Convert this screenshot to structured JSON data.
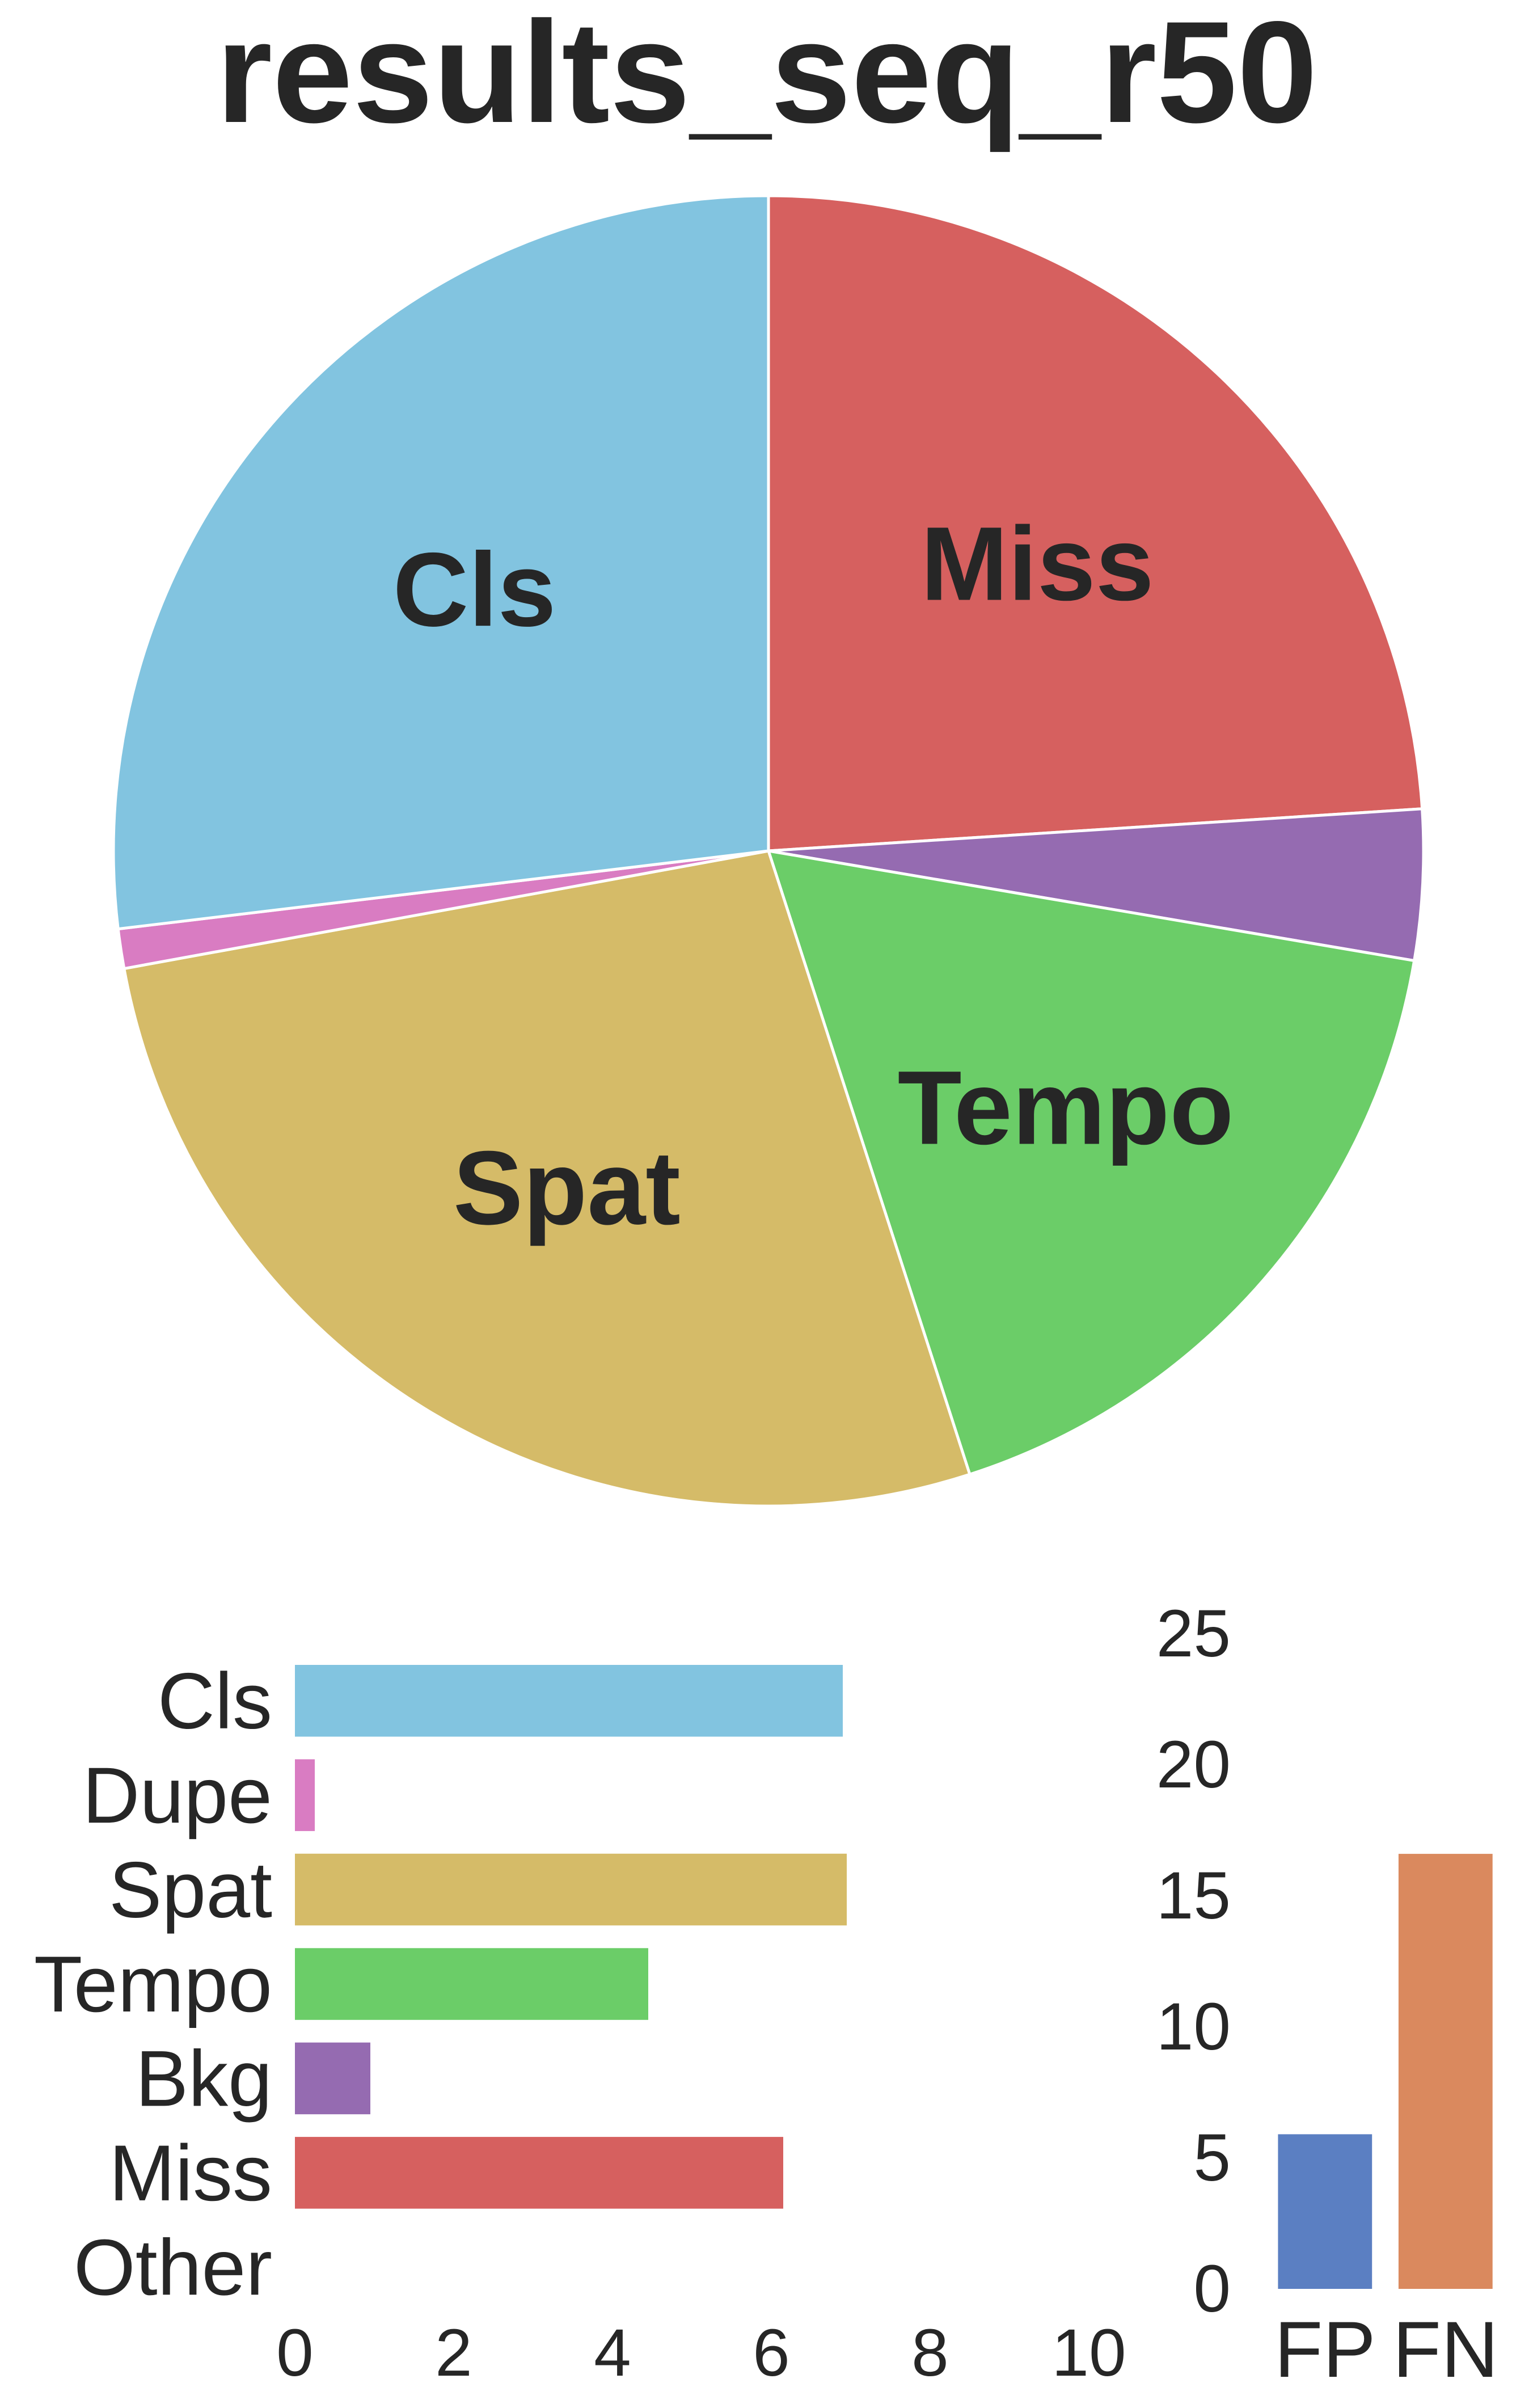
{
  "title": "results_seq_r50",
  "colors": {
    "Cls": "#82c4e0",
    "Dupe": "#d97cc2",
    "Spat": "#d5bb68",
    "Tempo": "#6bcd68",
    "Bkg": "#956bb1",
    "Miss": "#d6605f",
    "Other": "#999999",
    "FP": "#5b7fc2",
    "FN": "#da895e"
  },
  "chart_data": [
    {
      "type": "pie",
      "title": "results_seq_r50",
      "start_angle_deg": 90,
      "direction": "clockwise",
      "slices": [
        {
          "label": "Miss",
          "value": 6.15,
          "show_label": true
        },
        {
          "label": "Bkg",
          "value": 0.95,
          "show_label": false
        },
        {
          "label": "Tempo",
          "value": 4.45,
          "show_label": true
        },
        {
          "label": "Spat",
          "value": 6.95,
          "show_label": true
        },
        {
          "label": "Dupe",
          "value": 0.25,
          "show_label": false
        },
        {
          "label": "Cls",
          "value": 6.9,
          "show_label": true
        },
        {
          "label": "Other",
          "value": 0,
          "show_label": false
        }
      ]
    },
    {
      "type": "bar",
      "orientation": "horizontal",
      "categories": [
        "Cls",
        "Dupe",
        "Spat",
        "Tempo",
        "Bkg",
        "Miss",
        "Other"
      ],
      "values": [
        6.9,
        0.25,
        6.95,
        4.45,
        0.95,
        6.15,
        0
      ],
      "xlim": [
        0,
        10
      ],
      "xticks": [
        0,
        2,
        4,
        6,
        8,
        10
      ],
      "grid": false
    },
    {
      "type": "bar",
      "orientation": "vertical",
      "categories": [
        "FP",
        "FN"
      ],
      "values": [
        5.9,
        16.6
      ],
      "ylim": [
        0,
        25
      ],
      "yticks": [
        0,
        5,
        10,
        15,
        20,
        25
      ],
      "grid": false
    }
  ]
}
